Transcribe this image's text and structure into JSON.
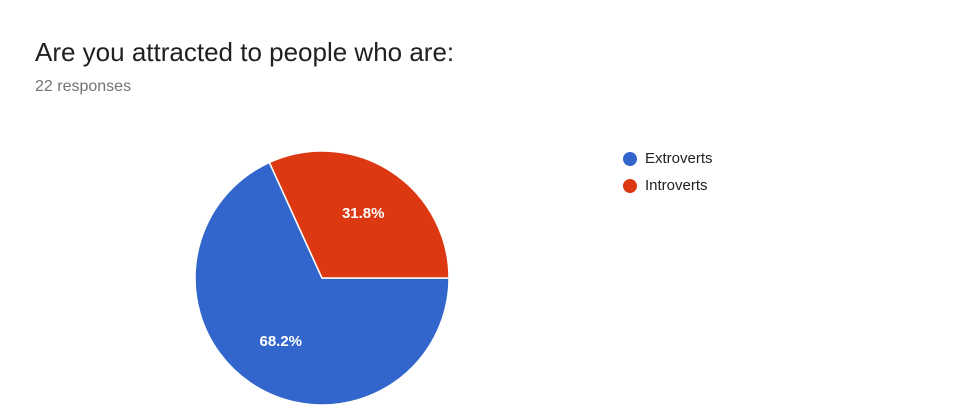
{
  "chart_data": {
    "type": "pie",
    "title": "Are you attracted to people who are:",
    "subtitle": "22 responses",
    "categories": [
      "Extroverts",
      "Introverts"
    ],
    "values": [
      68.2,
      31.8
    ],
    "value_labels": [
      "68.2%",
      "31.8%"
    ],
    "colors": [
      "#3366cc",
      "#dc3912"
    ]
  }
}
